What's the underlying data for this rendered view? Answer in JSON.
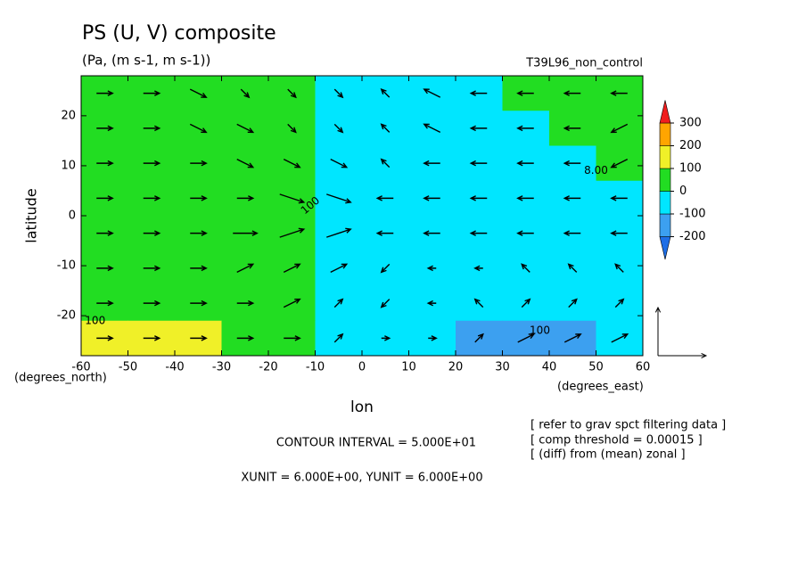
{
  "chart_data": {
    "type": "contour-vector",
    "title": "PS (U, V) composite",
    "subtitle": "(Pa, (m s-1, m s-1))",
    "run_label": "T39L96_non_control",
    "x_label": "lon",
    "y_label": "latitude",
    "x_unit_label": "(degrees_east)",
    "y_unit_label": "(degrees_north)",
    "xlim": [
      -60,
      60
    ],
    "ylim": [
      -28,
      28
    ],
    "xticks": [
      -60,
      -50,
      -40,
      -30,
      -20,
      -10,
      0,
      10,
      20,
      30,
      40,
      50,
      60
    ],
    "yticks": [
      -20,
      -10,
      0,
      10,
      20
    ],
    "x": [
      -55,
      -45,
      -35,
      -25,
      -15,
      -5,
      5,
      15,
      25,
      35,
      45,
      55
    ],
    "y": [
      24.5,
      17.5,
      10.5,
      3.5,
      -3.5,
      -10.5,
      -17.5,
      -24.5
    ],
    "z": [
      [
        50,
        50,
        50,
        50,
        50,
        -50,
        -80,
        -50,
        -30,
        20,
        60,
        50
      ],
      [
        40,
        40,
        40,
        40,
        40,
        -40,
        -50,
        -50,
        -50,
        -30,
        20,
        40
      ],
      [
        30,
        30,
        30,
        30,
        30,
        -40,
        -40,
        -40,
        -40,
        -30,
        -20,
        10
      ],
      [
        30,
        30,
        30,
        30,
        30,
        -40,
        -30,
        -30,
        -30,
        -30,
        -40,
        -40
      ],
      [
        30,
        30,
        30,
        30,
        20,
        -40,
        -30,
        -30,
        -30,
        -30,
        -30,
        -30
      ],
      [
        30,
        30,
        30,
        30,
        20,
        -40,
        -30,
        -40,
        -40,
        -40,
        -40,
        -30
      ],
      [
        80,
        80,
        70,
        40,
        20,
        -30,
        -40,
        -50,
        -60,
        -70,
        -60,
        -40
      ],
      [
        130,
        130,
        120,
        60,
        20,
        -30,
        -40,
        -60,
        -110,
        -130,
        -110,
        -60
      ]
    ],
    "u": [
      [
        2,
        2,
        2,
        1,
        1,
        1,
        -1,
        -2,
        -2,
        -2,
        -2,
        -2
      ],
      [
        2,
        2,
        2,
        2,
        1,
        1,
        -1,
        -2,
        -2,
        -2,
        -2,
        -2
      ],
      [
        2,
        2,
        2,
        2,
        2,
        2,
        -1,
        -2,
        -2,
        -2,
        -2,
        -2
      ],
      [
        2,
        2,
        2,
        2,
        3,
        3,
        -2,
        -2,
        -2,
        -2,
        -2,
        -2
      ],
      [
        2,
        2,
        2,
        3,
        3,
        3,
        -2,
        -2,
        -2,
        -2,
        -2,
        -2
      ],
      [
        2,
        2,
        2,
        2,
        2,
        2,
        -1,
        -1,
        -1,
        -1,
        -1,
        -1
      ],
      [
        2,
        2,
        2,
        2,
        2,
        1,
        -1,
        -1,
        -1,
        1,
        1,
        1
      ],
      [
        2,
        2,
        2,
        2,
        2,
        1,
        1,
        1,
        1,
        2,
        2,
        2
      ]
    ],
    "v": [
      [
        0,
        0,
        -1,
        -1,
        -1,
        -1,
        1,
        1,
        0,
        0,
        0,
        0
      ],
      [
        0,
        0,
        -1,
        -1,
        -1,
        -1,
        1,
        1,
        0,
        0,
        0,
        -1
      ],
      [
        0,
        0,
        0,
        -1,
        -1,
        -1,
        1,
        0,
        0,
        0,
        0,
        -1
      ],
      [
        0,
        0,
        0,
        0,
        -1,
        -1,
        0,
        0,
        0,
        0,
        0,
        0
      ],
      [
        0,
        0,
        0,
        0,
        1,
        1,
        0,
        0,
        0,
        0,
        0,
        0
      ],
      [
        0,
        0,
        0,
        1,
        1,
        1,
        -1,
        0,
        0,
        1,
        1,
        1
      ],
      [
        0,
        0,
        0,
        0,
        1,
        1,
        -1,
        0,
        1,
        1,
        1,
        1
      ],
      [
        0,
        0,
        0,
        0,
        0,
        1,
        0,
        0,
        1,
        1,
        1,
        1
      ]
    ],
    "levels": [
      -200,
      -100,
      0,
      100,
      200,
      300
    ],
    "colors": [
      "#1e6ee6",
      "#3ca0f0",
      "#00e6ff",
      "#22dd22",
      "#f0f028",
      "#ffa500",
      "#f01e1e"
    ],
    "ref_vector": [
      6,
      6
    ],
    "contour_labels": [
      "100",
      "8.00",
      "100",
      "100"
    ],
    "contour_interval_text": "CONTOUR INTERVAL = 5.000E+01",
    "unit_text": "XUNIT = 6.000E+00, YUNIT = 6.000E+00",
    "notes": [
      "[ refer to grav spct filtering data ]",
      "[ comp threshold = 0.00015 ]",
      "[ (diff) from (mean) zonal ]"
    ]
  }
}
